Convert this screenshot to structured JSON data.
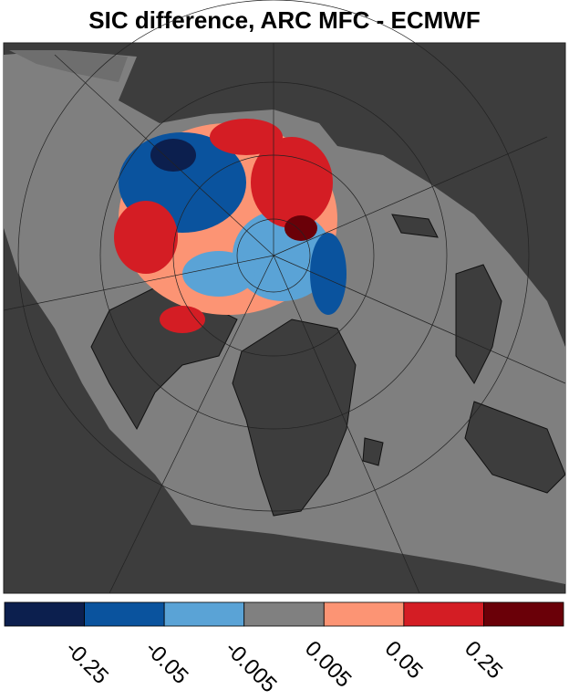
{
  "title": "SIC difference, ARC MFC - ECMWF",
  "colorbar": {
    "colors": [
      "#0c1f4e",
      "#0a539e",
      "#5aa3d6",
      "#808080",
      "#fc9474",
      "#d41d24",
      "#6a0008"
    ],
    "ticks": [
      -0.25,
      -0.05,
      -0.005,
      0.005,
      0.05,
      0.25
    ]
  }
}
